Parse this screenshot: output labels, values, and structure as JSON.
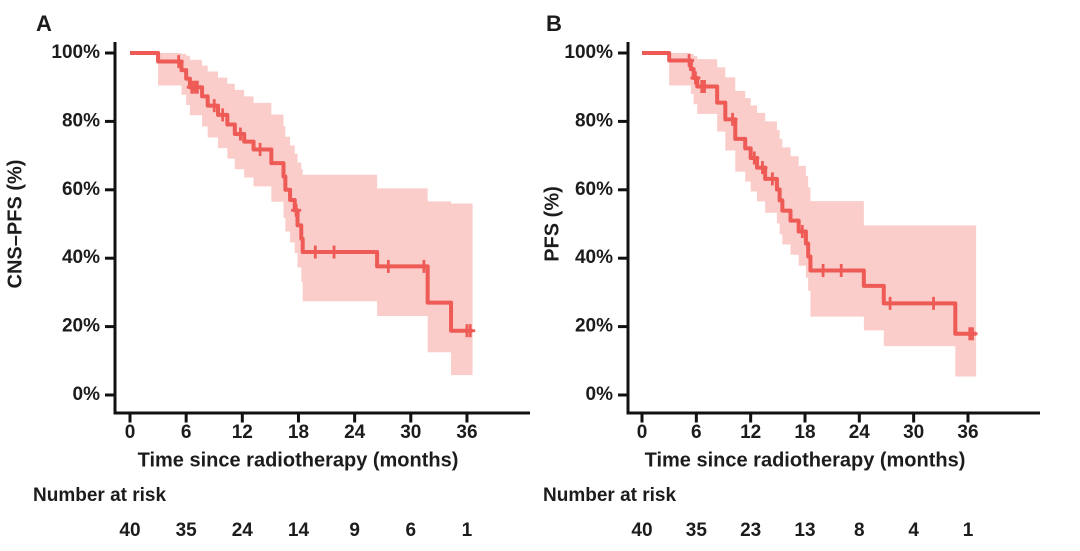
{
  "figure_colors": {
    "curve": "#ee5a55",
    "band": "#facdca",
    "axis": "#111111",
    "text": "#1c1c1e"
  },
  "chart_data": [
    {
      "type": "line",
      "step": "hv",
      "panel_label": "A",
      "ylabel": "CNS–PFS (%)",
      "xlabel": "Time since radiotherapy (months)",
      "x_ticks": [
        0,
        6,
        12,
        18,
        24,
        30,
        36
      ],
      "y_ticks": [
        0,
        20,
        40,
        60,
        80,
        100
      ],
      "y_tick_labels": [
        "0%",
        "20%",
        "40%",
        "60%",
        "80%",
        "100%"
      ],
      "xlim": [
        0,
        38
      ],
      "ylim": [
        0,
        100
      ],
      "risk_table": {
        "label": "Number at risk",
        "times": [
          0,
          6,
          12,
          18,
          24,
          30,
          36
        ],
        "values": [
          40,
          35,
          24,
          14,
          9,
          6,
          1
        ]
      },
      "curve": {
        "name": "CNS-PFS",
        "color": "#ee5a55",
        "start": [
          0,
          100
        ],
        "end_time": 36.6,
        "steps": [
          [
            3,
            97.5
          ],
          [
            5.5,
            95
          ],
          [
            6,
            92.5
          ],
          [
            6.4,
            90
          ],
          [
            7.7,
            87.3
          ],
          [
            8.3,
            84.6
          ],
          [
            9.4,
            81.9
          ],
          [
            10.4,
            79.1
          ],
          [
            11.2,
            76.3
          ],
          [
            12.2,
            74.1
          ],
          [
            13.2,
            71.8
          ],
          [
            15.1,
            67.8
          ],
          [
            16.4,
            63.9
          ],
          [
            16.6,
            60
          ],
          [
            17.1,
            57
          ],
          [
            17.6,
            54
          ],
          [
            17.9,
            49.6
          ],
          [
            18.3,
            45.7
          ],
          [
            18.45,
            41.8
          ],
          [
            26.4,
            37.6
          ],
          [
            31.8,
            27
          ],
          [
            34.3,
            18.8
          ]
        ]
      },
      "censors": [
        [
          5.2,
          97.5
        ],
        [
          6.6,
          90
        ],
        [
          6.9,
          90
        ],
        [
          7.2,
          90
        ],
        [
          9,
          84.6
        ],
        [
          9.9,
          81.9
        ],
        [
          11.8,
          76.3
        ],
        [
          13.9,
          71.8
        ],
        [
          17.75,
          54
        ],
        [
          19.8,
          41.8
        ],
        [
          21.8,
          41.8
        ],
        [
          27.6,
          37.6
        ],
        [
          31.4,
          37.6
        ],
        [
          36,
          18.8
        ],
        [
          36.35,
          18.8
        ]
      ],
      "ci_band": {
        "color": "#facdca",
        "upper": [
          [
            3,
            100
          ],
          [
            5.5,
            99.7
          ],
          [
            6,
            99.2
          ],
          [
            6.4,
            98
          ],
          [
            7.7,
            96.3
          ],
          [
            8.3,
            94.6
          ],
          [
            9.4,
            92.8
          ],
          [
            10.4,
            91
          ],
          [
            11.2,
            89.2
          ],
          [
            12.2,
            87.3
          ],
          [
            13.2,
            85.4
          ],
          [
            15.1,
            82
          ],
          [
            16.4,
            78.6
          ],
          [
            16.6,
            75.5
          ],
          [
            17.1,
            73
          ],
          [
            17.6,
            70.5
          ],
          [
            17.9,
            68
          ],
          [
            18.3,
            66
          ],
          [
            18.45,
            64.4
          ],
          [
            26.4,
            60.4
          ],
          [
            31.8,
            56.6
          ],
          [
            34.3,
            56
          ]
        ],
        "lower": [
          [
            3,
            90.5
          ],
          [
            5.5,
            87.8
          ],
          [
            6,
            84.8
          ],
          [
            6.4,
            81.8
          ],
          [
            7.7,
            78.5
          ],
          [
            8.3,
            75.3
          ],
          [
            9.4,
            72.2
          ],
          [
            10.4,
            69.1
          ],
          [
            11.2,
            66
          ],
          [
            12.2,
            63.6
          ],
          [
            13.2,
            61
          ],
          [
            15.1,
            56.5
          ],
          [
            16.4,
            51.8
          ],
          [
            16.6,
            47.8
          ],
          [
            17.1,
            44.6
          ],
          [
            17.6,
            41.5
          ],
          [
            17.9,
            37.3
          ],
          [
            18.3,
            33
          ],
          [
            18.45,
            27.4
          ],
          [
            26.4,
            23.1
          ],
          [
            31.8,
            12.5
          ],
          [
            34.3,
            5.8
          ]
        ]
      }
    },
    {
      "type": "line",
      "step": "hv",
      "panel_label": "B",
      "ylabel": "PFS (%)",
      "xlabel": "Time since radiotherapy (months)",
      "x_ticks": [
        0,
        6,
        12,
        18,
        24,
        30,
        36
      ],
      "y_ticks": [
        0,
        20,
        40,
        60,
        80,
        100
      ],
      "y_tick_labels": [
        "0%",
        "20%",
        "40%",
        "60%",
        "80%",
        "100%"
      ],
      "xlim": [
        0,
        38
      ],
      "ylim": [
        0,
        100
      ],
      "risk_table": {
        "label": "Number at risk",
        "times": [
          0,
          6,
          12,
          18,
          24,
          30,
          36
        ],
        "values": [
          40,
          35,
          23,
          13,
          8,
          4,
          1
        ]
      },
      "curve": {
        "name": "PFS",
        "color": "#ee5a55",
        "start": [
          0,
          100
        ],
        "end_time": 36.9,
        "steps": [
          [
            3,
            97.8
          ],
          [
            5.4,
            95.3
          ],
          [
            5.7,
            92.7
          ],
          [
            6.1,
            90.2
          ],
          [
            8.3,
            85.5
          ],
          [
            9.2,
            80.6
          ],
          [
            10.3,
            74.9
          ],
          [
            11.4,
            72.1
          ],
          [
            12,
            69.3
          ],
          [
            12.7,
            66.5
          ],
          [
            13.6,
            63.2
          ],
          [
            14.9,
            60.1
          ],
          [
            15.2,
            56.9
          ],
          [
            15.5,
            53.9
          ],
          [
            16.4,
            51
          ],
          [
            17.3,
            47.8
          ],
          [
            18.1,
            44.3
          ],
          [
            18.35,
            40.5
          ],
          [
            18.6,
            36.4
          ],
          [
            24.5,
            31.9
          ],
          [
            26.7,
            26.8
          ],
          [
            34.6,
            17.9
          ]
        ]
      },
      "censors": [
        [
          5.2,
          97.8
        ],
        [
          5.9,
          92.7
        ],
        [
          6.6,
          90.2
        ],
        [
          6.9,
          90.2
        ],
        [
          10,
          80.6
        ],
        [
          12.4,
          69.3
        ],
        [
          13.3,
          66.5
        ],
        [
          14.4,
          63.2
        ],
        [
          17.7,
          47.8
        ],
        [
          20,
          36.4
        ],
        [
          22,
          36.4
        ],
        [
          27.4,
          26.8
        ],
        [
          32.2,
          26.8
        ],
        [
          36.2,
          17.9
        ],
        [
          36.5,
          17.9
        ]
      ],
      "ci_band": {
        "color": "#facdca",
        "upper": [
          [
            3,
            100
          ],
          [
            5.4,
            99.7
          ],
          [
            5.7,
            99.1
          ],
          [
            6.1,
            98.2
          ],
          [
            8.3,
            95.8
          ],
          [
            9.2,
            92.9
          ],
          [
            10.3,
            88.9
          ],
          [
            11.4,
            86.8
          ],
          [
            12,
            84.7
          ],
          [
            12.7,
            82.5
          ],
          [
            13.6,
            80
          ],
          [
            14.9,
            77.5
          ],
          [
            15.2,
            74.9
          ],
          [
            15.5,
            72.4
          ],
          [
            16.4,
            69.8
          ],
          [
            17.3,
            67
          ],
          [
            18.1,
            64
          ],
          [
            18.35,
            60.7
          ],
          [
            18.6,
            56.7
          ],
          [
            24.5,
            49.6
          ],
          [
            26.7,
            49.6
          ],
          [
            34.6,
            49.6
          ]
        ],
        "lower": [
          [
            3,
            90.5
          ],
          [
            5.4,
            88
          ],
          [
            5.7,
            85
          ],
          [
            6.1,
            82.2
          ],
          [
            8.3,
            77
          ],
          [
            9.2,
            71.5
          ],
          [
            10.3,
            65.3
          ],
          [
            11.4,
            62.4
          ],
          [
            12,
            59.5
          ],
          [
            12.7,
            56.6
          ],
          [
            13.6,
            53.3
          ],
          [
            14.9,
            50.2
          ],
          [
            15.2,
            47
          ],
          [
            15.5,
            44
          ],
          [
            16.4,
            41
          ],
          [
            17.3,
            37.8
          ],
          [
            18.1,
            34.3
          ],
          [
            18.35,
            30.5
          ],
          [
            18.6,
            22.9
          ],
          [
            24.5,
            18.9
          ],
          [
            26.7,
            14.3
          ],
          [
            34.6,
            5.4
          ]
        ]
      }
    }
  ]
}
